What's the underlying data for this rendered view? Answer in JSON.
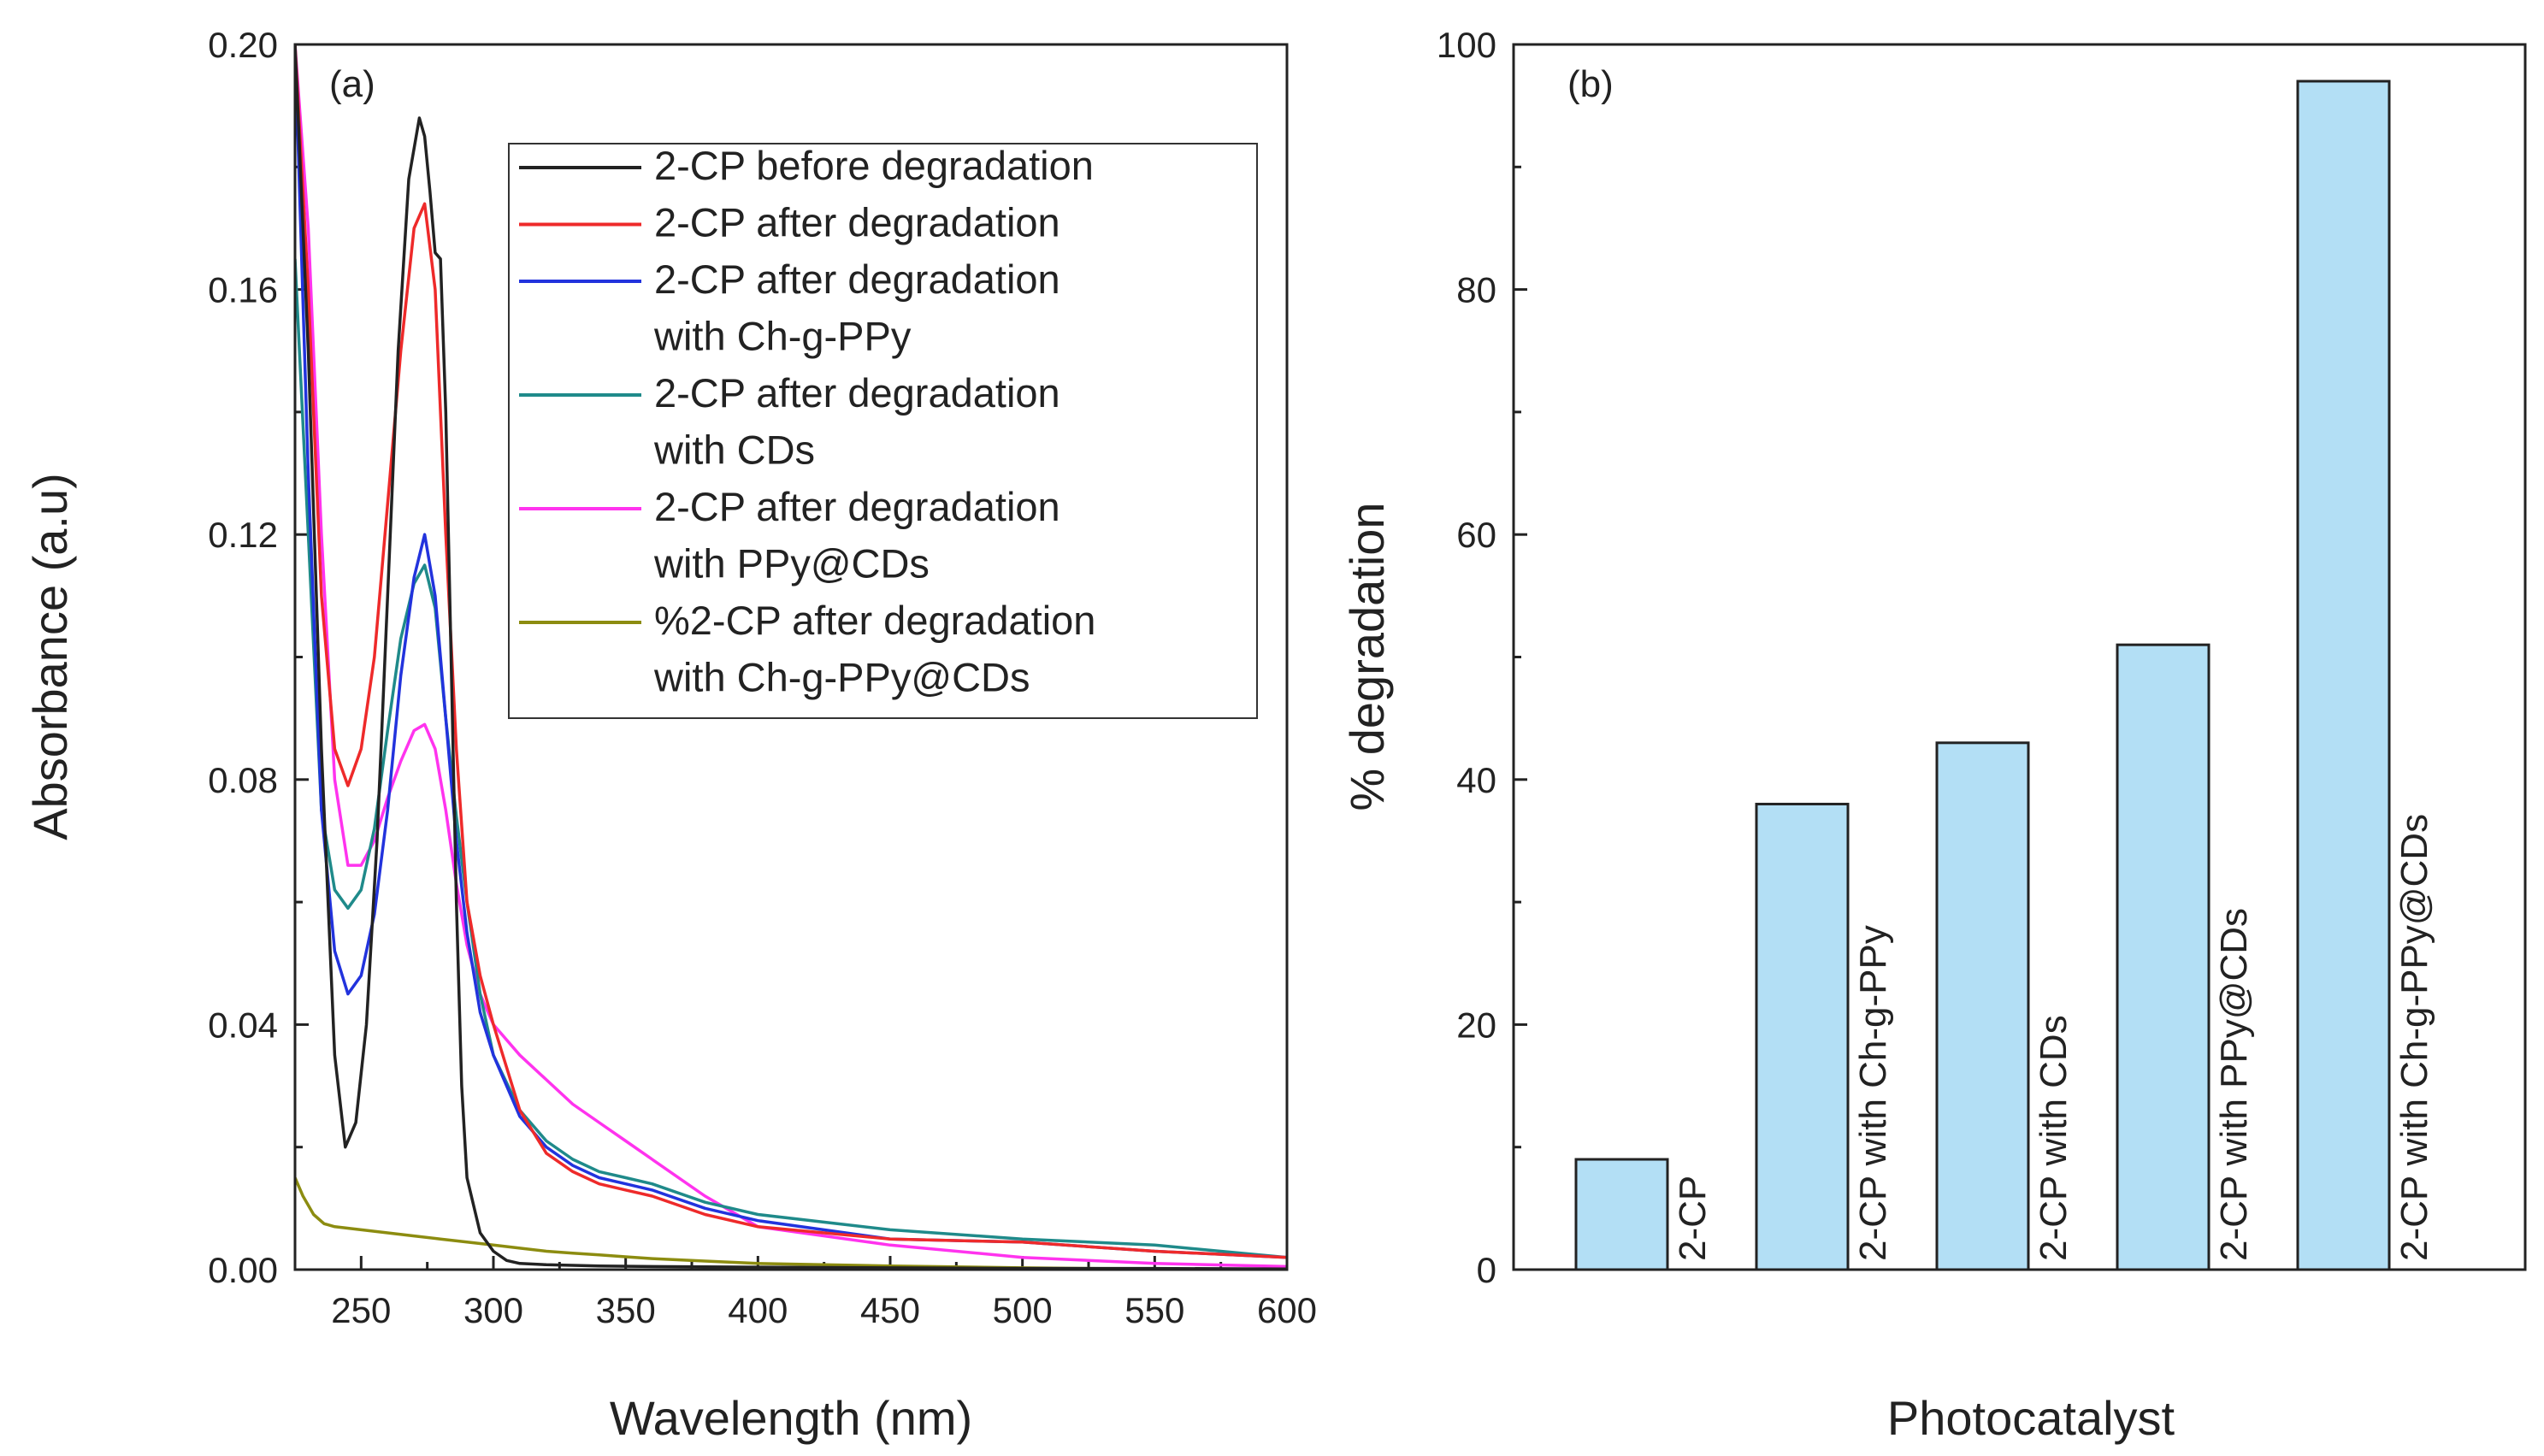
{
  "chart_data": [
    {
      "panel": "(a)",
      "type": "line",
      "xlabel": "Wavelength (nm)",
      "ylabel": "Absorbance (a.u)",
      "xlim": [
        225,
        600
      ],
      "ylim": [
        0,
        0.2
      ],
      "xticks": [
        250,
        300,
        350,
        400,
        450,
        500,
        550,
        600
      ],
      "yticks": [
        0.0,
        0.04,
        0.08,
        0.12,
        0.16,
        0.2
      ],
      "ytick_labels": [
        "0.00",
        "0.04",
        "0.08",
        "0.12",
        "0.16",
        "0.20"
      ],
      "legend_position": "top-right",
      "series": [
        {
          "name": "2-CP before degradation",
          "legend_lines": [
            "2-CP before degradation"
          ],
          "color": "#222222",
          "x": [
            225,
            230,
            235,
            240,
            244,
            248,
            252,
            256,
            260,
            264,
            268,
            272,
            274,
            276,
            278,
            280,
            282,
            284,
            286,
            288,
            290,
            295,
            300,
            305,
            310,
            320,
            340,
            360,
            400,
            450,
            500,
            550,
            600
          ],
          "y": [
            0.2,
            0.15,
            0.085,
            0.035,
            0.02,
            0.024,
            0.04,
            0.07,
            0.11,
            0.15,
            0.178,
            0.188,
            0.185,
            0.176,
            0.166,
            0.165,
            0.14,
            0.1,
            0.06,
            0.03,
            0.015,
            0.006,
            0.003,
            0.0015,
            0.001,
            0.0008,
            0.0006,
            0.0005,
            0.0004,
            0.0003,
            0.0002,
            0.0002,
            0.0001
          ]
        },
        {
          "name": "2-CP after degradation",
          "legend_lines": [
            "2-CP after degradation"
          ],
          "color": "#ee2a2a",
          "x": [
            225,
            230,
            235,
            240,
            245,
            250,
            255,
            260,
            265,
            270,
            274,
            278,
            282,
            286,
            290,
            295,
            300,
            310,
            320,
            330,
            340,
            350,
            360,
            380,
            400,
            450,
            500,
            550,
            600
          ],
          "y": [
            0.2,
            0.16,
            0.11,
            0.085,
            0.079,
            0.085,
            0.1,
            0.125,
            0.15,
            0.17,
            0.174,
            0.16,
            0.12,
            0.085,
            0.06,
            0.048,
            0.04,
            0.026,
            0.019,
            0.016,
            0.014,
            0.013,
            0.012,
            0.009,
            0.007,
            0.005,
            0.0045,
            0.003,
            0.002
          ]
        },
        {
          "name": "2-CP after degradation with Ch-g-PPy",
          "legend_lines": [
            "2-CP after degradation",
            "with Ch-g-PPy"
          ],
          "color": "#2233dd",
          "x": [
            225,
            230,
            235,
            240,
            245,
            250,
            255,
            260,
            265,
            270,
            274,
            278,
            282,
            286,
            290,
            295,
            300,
            310,
            320,
            330,
            340,
            350,
            360,
            380,
            400,
            450,
            500,
            550,
            600
          ],
          "y": [
            0.2,
            0.13,
            0.075,
            0.052,
            0.045,
            0.048,
            0.058,
            0.075,
            0.097,
            0.113,
            0.12,
            0.11,
            0.09,
            0.07,
            0.055,
            0.042,
            0.035,
            0.025,
            0.02,
            0.017,
            0.015,
            0.014,
            0.013,
            0.01,
            0.008,
            0.005,
            0.0045,
            0.003,
            0.002
          ]
        },
        {
          "name": "2-CP after degradation with CDs",
          "legend_lines": [
            "2-CP after degradation",
            "with CDs"
          ],
          "color": "#1f8a8a",
          "x": [
            225,
            230,
            235,
            240,
            245,
            250,
            255,
            260,
            265,
            270,
            274,
            278,
            282,
            286,
            290,
            295,
            300,
            310,
            320,
            330,
            340,
            350,
            360,
            380,
            400,
            450,
            500,
            550,
            600
          ],
          "y": [
            0.165,
            0.12,
            0.075,
            0.062,
            0.059,
            0.062,
            0.072,
            0.088,
            0.103,
            0.112,
            0.115,
            0.108,
            0.09,
            0.074,
            0.06,
            0.045,
            0.035,
            0.026,
            0.021,
            0.018,
            0.016,
            0.015,
            0.014,
            0.011,
            0.009,
            0.0065,
            0.005,
            0.004,
            0.002
          ]
        },
        {
          "name": "2-CP after degradation with PPy@CDs",
          "legend_lines": [
            "2-CP after degradation",
            "with PPy@CDs"
          ],
          "color": "#ff33ee",
          "x": [
            225,
            230,
            235,
            240,
            245,
            250,
            255,
            260,
            265,
            270,
            274,
            278,
            282,
            286,
            290,
            295,
            300,
            310,
            320,
            330,
            340,
            350,
            360,
            380,
            400,
            450,
            500,
            550,
            600
          ],
          "y": [
            0.2,
            0.17,
            0.12,
            0.08,
            0.066,
            0.066,
            0.07,
            0.077,
            0.083,
            0.088,
            0.089,
            0.085,
            0.075,
            0.063,
            0.053,
            0.045,
            0.04,
            0.035,
            0.031,
            0.027,
            0.024,
            0.021,
            0.018,
            0.012,
            0.007,
            0.004,
            0.002,
            0.001,
            0.0005
          ]
        },
        {
          "name": "%2-CP after degradation with Ch-g-PPy@CDs",
          "legend_lines": [
            "%2-CP after degradation",
            "with Ch-g-PPy@CDs"
          ],
          "color": "#8c8c10",
          "x": [
            225,
            228,
            232,
            236,
            240,
            250,
            260,
            270,
            280,
            290,
            300,
            310,
            320,
            330,
            340,
            350,
            360,
            380,
            400,
            450,
            500,
            550,
            600
          ],
          "y": [
            0.015,
            0.012,
            0.009,
            0.0075,
            0.007,
            0.0065,
            0.006,
            0.0055,
            0.005,
            0.0045,
            0.004,
            0.0035,
            0.003,
            0.0027,
            0.0024,
            0.0021,
            0.0018,
            0.0014,
            0.001,
            0.0006,
            0.0003,
            0.0001,
            0.0
          ]
        }
      ]
    },
    {
      "panel": "(b)",
      "type": "bar",
      "xlabel": "Photocatalyst",
      "ylabel": "% degradation",
      "ylim": [
        0,
        100
      ],
      "yticks": [
        0,
        20,
        40,
        60,
        80,
        100
      ],
      "categories": [
        "2-CP",
        "2-CP with Ch-g-PPy",
        "2-CP with CDs",
        "2-CP with PPy@CDs",
        "2-CP with Ch-g-PPy@CDs"
      ],
      "values": [
        9,
        38,
        43,
        51,
        97
      ],
      "bar_color": "#b3dff5"
    }
  ]
}
